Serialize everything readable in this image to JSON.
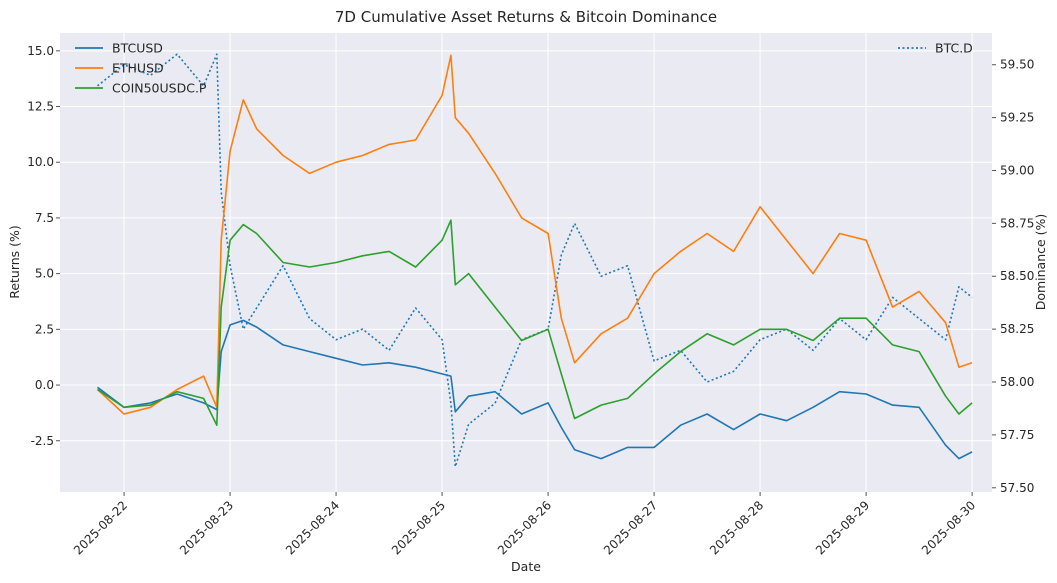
{
  "chart_data": {
    "type": "line",
    "title": "7D Cumulative Asset Returns & Bitcoin Dominance",
    "xlabel": "Date",
    "ylabel_left": "Returns (%)",
    "ylabel_right": "Dominance (%)",
    "x_range": [
      "2025-08-21T09:30",
      "2025-08-30T04:30"
    ],
    "x_ticks": [
      "2025-08-22",
      "2025-08-23",
      "2025-08-24",
      "2025-08-25",
      "2025-08-26",
      "2025-08-27",
      "2025-08-28",
      "2025-08-29",
      "2025-08-30"
    ],
    "ylim_left": [
      -4.8,
      15.8
    ],
    "ylim_right": [
      57.48,
      59.65
    ],
    "y_ticks_left": [
      "-2.5",
      "0.0",
      "2.5",
      "5.0",
      "7.5",
      "10.0",
      "12.5",
      "15.0"
    ],
    "y_ticks_right": [
      "57.50",
      "57.75",
      "58.00",
      "58.25",
      "58.50",
      "58.75",
      "59.00",
      "59.25",
      "59.50"
    ],
    "grid": true,
    "legend_left": "top-left",
    "legend_right": "top-right",
    "series": [
      {
        "name": "BTCUSD",
        "axis": "left",
        "color": "#1f77b4",
        "style": "solid",
        "points": [
          [
            "2025-08-21T18:00",
            -0.1
          ],
          [
            "2025-08-22T00:00",
            -1.0
          ],
          [
            "2025-08-22T06:00",
            -0.8
          ],
          [
            "2025-08-22T12:00",
            -0.4
          ],
          [
            "2025-08-22T18:00",
            -0.8
          ],
          [
            "2025-08-22T21:00",
            -1.1
          ],
          [
            "2025-08-22T22:00",
            1.5
          ],
          [
            "2025-08-23T00:00",
            2.7
          ],
          [
            "2025-08-23T03:00",
            2.9
          ],
          [
            "2025-08-23T06:00",
            2.6
          ],
          [
            "2025-08-23T12:00",
            1.8
          ],
          [
            "2025-08-23T18:00",
            1.5
          ],
          [
            "2025-08-24T00:00",
            1.2
          ],
          [
            "2025-08-24T06:00",
            0.9
          ],
          [
            "2025-08-24T12:00",
            1.0
          ],
          [
            "2025-08-24T18:00",
            0.8
          ],
          [
            "2025-08-25T00:00",
            0.5
          ],
          [
            "2025-08-25T02:00",
            0.4
          ],
          [
            "2025-08-25T03:00",
            -1.2
          ],
          [
            "2025-08-25T06:00",
            -0.5
          ],
          [
            "2025-08-25T12:00",
            -0.3
          ],
          [
            "2025-08-25T18:00",
            -1.3
          ],
          [
            "2025-08-26T00:00",
            -0.8
          ],
          [
            "2025-08-26T03:00",
            -1.9
          ],
          [
            "2025-08-26T06:00",
            -2.9
          ],
          [
            "2025-08-26T12:00",
            -3.3
          ],
          [
            "2025-08-26T18:00",
            -2.8
          ],
          [
            "2025-08-27T00:00",
            -2.8
          ],
          [
            "2025-08-27T06:00",
            -1.8
          ],
          [
            "2025-08-27T12:00",
            -1.3
          ],
          [
            "2025-08-27T18:00",
            -2.0
          ],
          [
            "2025-08-28T00:00",
            -1.3
          ],
          [
            "2025-08-28T06:00",
            -1.6
          ],
          [
            "2025-08-28T12:00",
            -1.0
          ],
          [
            "2025-08-28T18:00",
            -0.3
          ],
          [
            "2025-08-29T00:00",
            -0.4
          ],
          [
            "2025-08-29T06:00",
            -0.9
          ],
          [
            "2025-08-29T12:00",
            -1.0
          ],
          [
            "2025-08-29T18:00",
            -2.7
          ],
          [
            "2025-08-29T21:00",
            -3.3
          ],
          [
            "2025-08-30T00:00",
            -3.0
          ]
        ]
      },
      {
        "name": "ETHUSD",
        "axis": "left",
        "color": "#ff7f0e",
        "style": "solid",
        "points": [
          [
            "2025-08-21T18:00",
            -0.2
          ],
          [
            "2025-08-22T00:00",
            -1.3
          ],
          [
            "2025-08-22T06:00",
            -1.0
          ],
          [
            "2025-08-22T12:00",
            -0.2
          ],
          [
            "2025-08-22T18:00",
            0.4
          ],
          [
            "2025-08-22T21:00",
            -1.0
          ],
          [
            "2025-08-22T22:00",
            6.5
          ],
          [
            "2025-08-23T00:00",
            10.5
          ],
          [
            "2025-08-23T03:00",
            12.8
          ],
          [
            "2025-08-23T06:00",
            11.5
          ],
          [
            "2025-08-23T12:00",
            10.3
          ],
          [
            "2025-08-23T18:00",
            9.5
          ],
          [
            "2025-08-24T00:00",
            10.0
          ],
          [
            "2025-08-24T06:00",
            10.3
          ],
          [
            "2025-08-24T12:00",
            10.8
          ],
          [
            "2025-08-24T18:00",
            11.0
          ],
          [
            "2025-08-25T00:00",
            13.0
          ],
          [
            "2025-08-25T02:00",
            14.8
          ],
          [
            "2025-08-25T03:00",
            12.0
          ],
          [
            "2025-08-25T06:00",
            11.3
          ],
          [
            "2025-08-25T12:00",
            9.5
          ],
          [
            "2025-08-25T18:00",
            7.5
          ],
          [
            "2025-08-26T00:00",
            6.8
          ],
          [
            "2025-08-26T03:00",
            3.0
          ],
          [
            "2025-08-26T06:00",
            1.0
          ],
          [
            "2025-08-26T12:00",
            2.3
          ],
          [
            "2025-08-26T18:00",
            3.0
          ],
          [
            "2025-08-27T00:00",
            5.0
          ],
          [
            "2025-08-27T06:00",
            6.0
          ],
          [
            "2025-08-27T12:00",
            6.8
          ],
          [
            "2025-08-27T18:00",
            6.0
          ],
          [
            "2025-08-28T00:00",
            8.0
          ],
          [
            "2025-08-28T06:00",
            6.5
          ],
          [
            "2025-08-28T12:00",
            5.0
          ],
          [
            "2025-08-28T18:00",
            6.8
          ],
          [
            "2025-08-29T00:00",
            6.5
          ],
          [
            "2025-08-29T06:00",
            3.5
          ],
          [
            "2025-08-29T12:00",
            4.2
          ],
          [
            "2025-08-29T18:00",
            2.8
          ],
          [
            "2025-08-29T21:00",
            0.8
          ],
          [
            "2025-08-30T00:00",
            1.0
          ]
        ]
      },
      {
        "name": "COIN50USDC.P",
        "axis": "left",
        "color": "#2ca02c",
        "style": "solid",
        "points": [
          [
            "2025-08-21T18:00",
            -0.2
          ],
          [
            "2025-08-22T00:00",
            -1.0
          ],
          [
            "2025-08-22T06:00",
            -0.9
          ],
          [
            "2025-08-22T12:00",
            -0.3
          ],
          [
            "2025-08-22T18:00",
            -0.6
          ],
          [
            "2025-08-22T21:00",
            -1.8
          ],
          [
            "2025-08-22T22:00",
            3.5
          ],
          [
            "2025-08-23T00:00",
            6.5
          ],
          [
            "2025-08-23T03:00",
            7.2
          ],
          [
            "2025-08-23T06:00",
            6.8
          ],
          [
            "2025-08-23T12:00",
            5.5
          ],
          [
            "2025-08-23T18:00",
            5.3
          ],
          [
            "2025-08-24T00:00",
            5.5
          ],
          [
            "2025-08-24T06:00",
            5.8
          ],
          [
            "2025-08-24T12:00",
            6.0
          ],
          [
            "2025-08-24T18:00",
            5.3
          ],
          [
            "2025-08-25T00:00",
            6.5
          ],
          [
            "2025-08-25T02:00",
            7.4
          ],
          [
            "2025-08-25T03:00",
            4.5
          ],
          [
            "2025-08-25T06:00",
            5.0
          ],
          [
            "2025-08-25T12:00",
            3.5
          ],
          [
            "2025-08-25T18:00",
            2.0
          ],
          [
            "2025-08-26T00:00",
            2.5
          ],
          [
            "2025-08-26T03:00",
            0.5
          ],
          [
            "2025-08-26T06:00",
            -1.5
          ],
          [
            "2025-08-26T12:00",
            -0.9
          ],
          [
            "2025-08-26T18:00",
            -0.6
          ],
          [
            "2025-08-27T00:00",
            0.5
          ],
          [
            "2025-08-27T06:00",
            1.5
          ],
          [
            "2025-08-27T12:00",
            2.3
          ],
          [
            "2025-08-27T18:00",
            1.8
          ],
          [
            "2025-08-28T00:00",
            2.5
          ],
          [
            "2025-08-28T06:00",
            2.5
          ],
          [
            "2025-08-28T12:00",
            2.0
          ],
          [
            "2025-08-28T18:00",
            3.0
          ],
          [
            "2025-08-29T00:00",
            3.0
          ],
          [
            "2025-08-29T06:00",
            1.8
          ],
          [
            "2025-08-29T12:00",
            1.5
          ],
          [
            "2025-08-29T18:00",
            -0.5
          ],
          [
            "2025-08-29T21:00",
            -1.3
          ],
          [
            "2025-08-30T00:00",
            -0.8
          ]
        ]
      },
      {
        "name": "BTC.D",
        "axis": "right",
        "color": "#1f77b4",
        "style": "dotted",
        "points": [
          [
            "2025-08-21T18:00",
            59.4
          ],
          [
            "2025-08-22T00:00",
            59.5
          ],
          [
            "2025-08-22T06:00",
            59.45
          ],
          [
            "2025-08-22T12:00",
            59.55
          ],
          [
            "2025-08-22T18:00",
            59.4
          ],
          [
            "2025-08-22T21:00",
            59.55
          ],
          [
            "2025-08-22T22:00",
            58.9
          ],
          [
            "2025-08-23T00:00",
            58.55
          ],
          [
            "2025-08-23T03:00",
            58.25
          ],
          [
            "2025-08-23T06:00",
            58.35
          ],
          [
            "2025-08-23T12:00",
            58.55
          ],
          [
            "2025-08-23T18:00",
            58.3
          ],
          [
            "2025-08-24T00:00",
            58.2
          ],
          [
            "2025-08-24T06:00",
            58.25
          ],
          [
            "2025-08-24T12:00",
            58.15
          ],
          [
            "2025-08-24T18:00",
            58.35
          ],
          [
            "2025-08-25T00:00",
            58.2
          ],
          [
            "2025-08-25T02:00",
            57.9
          ],
          [
            "2025-08-25T03:00",
            57.6
          ],
          [
            "2025-08-25T06:00",
            57.8
          ],
          [
            "2025-08-25T12:00",
            57.9
          ],
          [
            "2025-08-25T18:00",
            58.2
          ],
          [
            "2025-08-26T00:00",
            58.25
          ],
          [
            "2025-08-26T03:00",
            58.6
          ],
          [
            "2025-08-26T06:00",
            58.75
          ],
          [
            "2025-08-26T12:00",
            58.5
          ],
          [
            "2025-08-26T18:00",
            58.55
          ],
          [
            "2025-08-27T00:00",
            58.1
          ],
          [
            "2025-08-27T06:00",
            58.15
          ],
          [
            "2025-08-27T12:00",
            58.0
          ],
          [
            "2025-08-27T18:00",
            58.05
          ],
          [
            "2025-08-28T00:00",
            58.2
          ],
          [
            "2025-08-28T06:00",
            58.25
          ],
          [
            "2025-08-28T12:00",
            58.15
          ],
          [
            "2025-08-28T18:00",
            58.3
          ],
          [
            "2025-08-29T00:00",
            58.2
          ],
          [
            "2025-08-29T06:00",
            58.4
          ],
          [
            "2025-08-29T12:00",
            58.3
          ],
          [
            "2025-08-29T18:00",
            58.2
          ],
          [
            "2025-08-29T21:00",
            58.45
          ],
          [
            "2025-08-30T00:00",
            58.4
          ]
        ]
      }
    ]
  }
}
